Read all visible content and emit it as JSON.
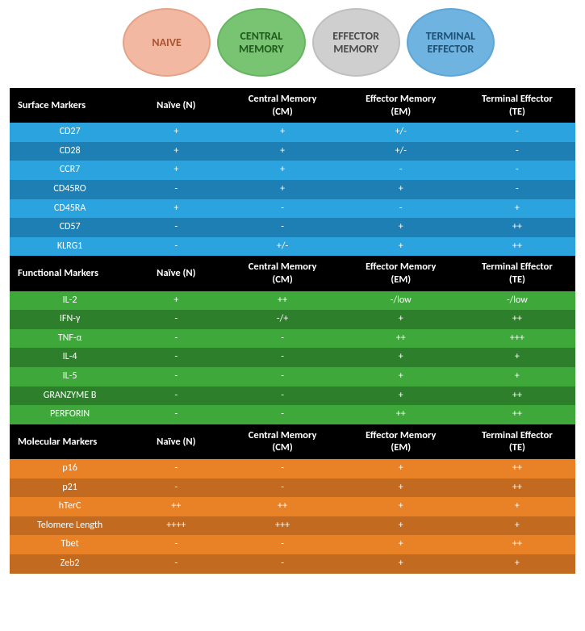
{
  "badges": [
    {
      "label": "NAIVE",
      "bg": "#f3b8a1",
      "fg": "#a85430",
      "border": "#e4a388"
    },
    {
      "label": "CENTRAL\nMEMORY",
      "bg": "#79c473",
      "fg": "#1f5a1c",
      "border": "#67b561"
    },
    {
      "label": "EFFECTOR\nMEMORY",
      "bg": "#cfcfcf",
      "fg": "#4a4a4a",
      "border": "#bfbfbf"
    },
    {
      "label": "TERMINAL\nEFFECTOR",
      "bg": "#6fb3e0",
      "fg": "#1d4f74",
      "border": "#5fa6d6"
    }
  ],
  "columns": [
    "Naïve (N)",
    "Central Memory\n(CM)",
    "Effector Memory\n(EM)",
    "Terminal Effector\n(TE)"
  ],
  "sections": [
    {
      "title": "Surface Markers",
      "colors": {
        "odd": "#2aa3de",
        "even": "#1e7fb4"
      },
      "rows": [
        {
          "name": "CD27",
          "v": [
            "+",
            "+",
            "+/-",
            "-"
          ]
        },
        {
          "name": "CD28",
          "v": [
            "+",
            "+",
            "+/-",
            "-"
          ]
        },
        {
          "name": "CCR7",
          "v": [
            "+",
            "+",
            "-",
            "-"
          ]
        },
        {
          "name": "CD45RO",
          "v": [
            "-",
            "+",
            "+",
            "-"
          ]
        },
        {
          "name": "CD45RA",
          "v": [
            "+",
            "-",
            "-",
            "+"
          ]
        },
        {
          "name": "CD57",
          "v": [
            "-",
            "-",
            "+",
            "++"
          ]
        },
        {
          "name": "KLRG1",
          "v": [
            "-",
            "+/-",
            "+",
            "++"
          ]
        }
      ]
    },
    {
      "title": "Functional Markers",
      "colors": {
        "odd": "#3ea83b",
        "even": "#2e7f2c"
      },
      "rows": [
        {
          "name": "IL-2",
          "v": [
            "+",
            "++",
            "-/low",
            "-/low"
          ]
        },
        {
          "name": "IFN-γ",
          "v": [
            "-",
            "-/+",
            "+",
            "++"
          ]
        },
        {
          "name": "TNF-α",
          "v": [
            "-",
            "-",
            "++",
            "+++"
          ]
        },
        {
          "name": "IL-4",
          "v": [
            "-",
            "-",
            "+",
            "+"
          ]
        },
        {
          "name": "IL-5",
          "v": [
            "-",
            "-",
            "+",
            "+"
          ]
        },
        {
          "name": "GRANZYME B",
          "v": [
            "-",
            "-",
            "+",
            "++"
          ]
        },
        {
          "name": "PERFORIN",
          "v": [
            "-",
            "-",
            "++",
            "++"
          ]
        }
      ]
    },
    {
      "title": "Molecular Markers",
      "colors": {
        "odd": "#e98127",
        "even": "#c16a20"
      },
      "rows": [
        {
          "name": "p16",
          "v": [
            "-",
            "-",
            "+",
            "++"
          ]
        },
        {
          "name": "p21",
          "v": [
            "-",
            "-",
            "+",
            "++"
          ]
        },
        {
          "name": "hTerC",
          "v": [
            "++",
            "++",
            "+",
            "+"
          ]
        },
        {
          "name": "Telomere Length",
          "v": [
            "++++",
            "+++",
            "+",
            "+"
          ]
        },
        {
          "name": "Tbet",
          "v": [
            "-",
            "-",
            "+",
            "++"
          ]
        },
        {
          "name": "Zeb2",
          "v": [
            "-",
            "-",
            "+",
            "+"
          ]
        }
      ]
    }
  ]
}
